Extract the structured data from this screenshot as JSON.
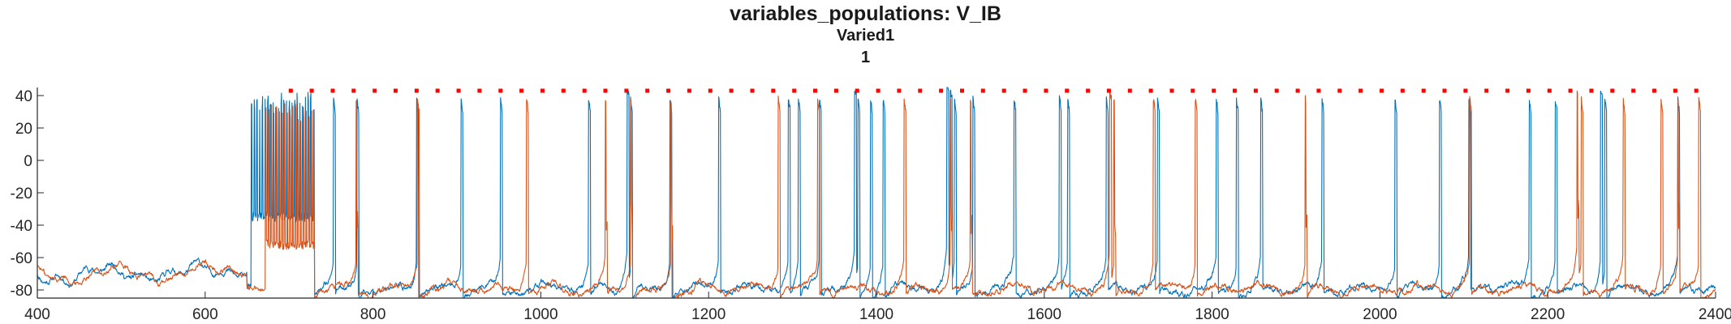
{
  "titles": {
    "main": "variables_populations: V_IB",
    "line2": "Varied1",
    "line3": "1"
  },
  "chart_data": {
    "type": "line",
    "title": "variables_populations: V_IB",
    "subtitle": [
      "Varied1",
      "1"
    ],
    "xlabel": "",
    "ylabel": "",
    "xlim": [
      400,
      2400
    ],
    "ylim": [
      -85,
      45
    ],
    "xticks": [
      400,
      600,
      800,
      1000,
      1200,
      1400,
      1600,
      1800,
      2000,
      2200,
      2400
    ],
    "yticks": [
      -80,
      -60,
      -40,
      -20,
      0,
      20,
      40
    ],
    "grid": false,
    "legend": "none",
    "colors": {
      "series1": "#0072BD",
      "series2": "#D95319",
      "markers": "#FF0000"
    },
    "series": [
      {
        "color": "#0072BD",
        "initial_burst": {
          "start": 655,
          "end": 730,
          "peak": 42,
          "trough": -38
        },
        "spike_times": [
          753,
          781,
          852,
          905,
          952,
          1057,
          1103,
          1107,
          1154,
          1212,
          1295,
          1307,
          1332,
          1374,
          1378,
          1393,
          1408,
          1484,
          1488,
          1493,
          1515,
          1564,
          1618,
          1628,
          1674,
          1735,
          1805,
          1829,
          1858,
          1931,
          2018,
          2071,
          2106,
          2178,
          2209,
          2263,
          2268,
          2355
        ]
      },
      {
        "color": "#D95319",
        "initial_burst": {
          "start": 672,
          "end": 730,
          "peak": 35,
          "trough": -55
        },
        "spike_times": [
          728,
          780,
          853,
          983,
          1077,
          1107,
          1155,
          1283,
          1330,
          1433,
          1488,
          1512,
          1678,
          1683,
          1730,
          1780,
          1911,
          2107,
          2235,
          2240,
          2290,
          2335,
          2355,
          2380
        ]
      }
    ],
    "markers": {
      "y": 43,
      "x": [
        702,
        727,
        752,
        777,
        802,
        827,
        852,
        877,
        902,
        927,
        952,
        977,
        1002,
        1027,
        1052,
        1077,
        1102,
        1127,
        1152,
        1177,
        1202,
        1227,
        1252,
        1277,
        1302,
        1327,
        1352,
        1377,
        1402,
        1427,
        1452,
        1477,
        1502,
        1527,
        1552,
        1577,
        1602,
        1627,
        1652,
        1677,
        1702,
        1727,
        1752,
        1777,
        1802,
        1827,
        1852,
        1877,
        1902,
        1927,
        1952,
        1977,
        2002,
        2027,
        2052,
        2077,
        2102,
        2127,
        2152,
        2177,
        2202,
        2227,
        2252,
        2277,
        2302,
        2327,
        2352,
        2377
      ]
    }
  }
}
